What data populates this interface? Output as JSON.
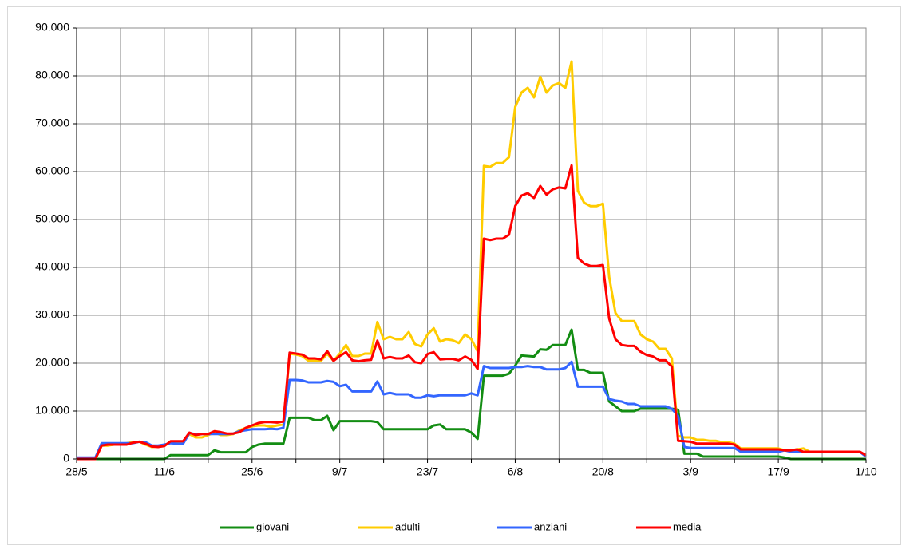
{
  "chart_data": {
    "type": "line",
    "categories": [
      "28/5",
      null,
      null,
      null,
      null,
      null,
      null,
      null,
      null,
      null,
      null,
      null,
      null,
      null,
      "11/6",
      null,
      null,
      null,
      null,
      null,
      null,
      null,
      null,
      null,
      null,
      null,
      null,
      null,
      "25/6",
      null,
      null,
      null,
      null,
      null,
      null,
      null,
      null,
      null,
      null,
      null,
      null,
      null,
      "9/7",
      null,
      null,
      null,
      null,
      null,
      null,
      null,
      null,
      null,
      null,
      null,
      null,
      null,
      "23/7",
      null,
      null,
      null,
      null,
      null,
      null,
      null,
      null,
      null,
      null,
      null,
      null,
      null,
      "6/8",
      null,
      null,
      null,
      null,
      null,
      null,
      null,
      null,
      null,
      null,
      null,
      null,
      null,
      "20/8",
      null,
      null,
      null,
      null,
      null,
      null,
      null,
      null,
      null,
      null,
      null,
      null,
      null,
      "3/9",
      null,
      null,
      null,
      null,
      null,
      null,
      null,
      null,
      null,
      null,
      null,
      null,
      null,
      "17/9",
      null,
      null,
      null,
      null,
      null,
      null,
      null,
      null,
      null,
      null,
      null,
      null,
      null,
      "1/10"
    ],
    "series": [
      {
        "name": "giovani",
        "color": "#138d13",
        "values": [
          0,
          0,
          0,
          0,
          0,
          0,
          0,
          0,
          0,
          0,
          0,
          0,
          0,
          0,
          0,
          800,
          800,
          800,
          800,
          800,
          800,
          800,
          1800,
          1400,
          1400,
          1400,
          1400,
          1400,
          2500,
          3000,
          3200,
          3200,
          3200,
          3200,
          8600,
          8600,
          8600,
          8600,
          8100,
          8100,
          9000,
          6000,
          7900,
          7900,
          7900,
          7900,
          7900,
          7900,
          7700,
          6200,
          6200,
          6200,
          6200,
          6200,
          6200,
          6200,
          6200,
          7000,
          7200,
          6200,
          6200,
          6200,
          6200,
          5500,
          4200,
          17400,
          17400,
          17400,
          17400,
          17800,
          19500,
          21600,
          21500,
          21400,
          22900,
          22800,
          23800,
          23800,
          23800,
          27000,
          18600,
          18600,
          18000,
          18000,
          18000,
          12000,
          11000,
          10000,
          10000,
          10000,
          10500,
          10500,
          10500,
          10500,
          10500,
          10500,
          10300,
          1100,
          1100,
          1100,
          500,
          500,
          500,
          500,
          500,
          500,
          500,
          500,
          500,
          500,
          500,
          500,
          500,
          300,
          0,
          0,
          0,
          0,
          0,
          0,
          0,
          0,
          0,
          0,
          0,
          0,
          0
        ]
      },
      {
        "name": "adulti",
        "color": "#ffcc00",
        "values": [
          0,
          0,
          0,
          0,
          2800,
          2800,
          3000,
          3200,
          3300,
          3500,
          3600,
          3000,
          2500,
          2600,
          2800,
          3500,
          3600,
          3600,
          5200,
          4500,
          4500,
          5000,
          5500,
          5000,
          5000,
          5200,
          6000,
          6500,
          6800,
          7000,
          7000,
          6700,
          7000,
          7200,
          22000,
          21800,
          21500,
          20500,
          20500,
          20500,
          22000,
          20500,
          22000,
          23800,
          21500,
          21500,
          22000,
          22000,
          28600,
          25000,
          25500,
          25000,
          25000,
          26500,
          24000,
          23500,
          26000,
          27300,
          24500,
          25000,
          24800,
          24200,
          26000,
          25000,
          22500,
          61200,
          61000,
          61800,
          61800,
          63000,
          73500,
          76500,
          77500,
          75500,
          79800,
          76500,
          78000,
          78500,
          77500,
          83000,
          56000,
          53500,
          52800,
          52800,
          53300,
          38000,
          30500,
          28800,
          28800,
          28800,
          26000,
          25000,
          24500,
          23000,
          23000,
          21000,
          4800,
          4500,
          4500,
          4000,
          4000,
          3800,
          3800,
          3500,
          3500,
          3200,
          2200,
          2200,
          2200,
          2200,
          2200,
          2200,
          2200,
          1800,
          1800,
          2000,
          2200,
          1500,
          1500,
          1500,
          1500,
          1500,
          1500,
          1500,
          1500,
          1500,
          700
        ]
      },
      {
        "name": "anziani",
        "color": "#3366ff",
        "values": [
          300,
          300,
          300,
          300,
          3300,
          3300,
          3300,
          3300,
          3300,
          3300,
          3600,
          3500,
          2800,
          2800,
          3000,
          3300,
          3200,
          3200,
          5400,
          5200,
          5200,
          5200,
          5200,
          5200,
          5200,
          5300,
          5800,
          6000,
          6200,
          6200,
          6200,
          6300,
          6200,
          6500,
          16500,
          16500,
          16400,
          16000,
          16000,
          16000,
          16300,
          16100,
          15200,
          15500,
          14100,
          14100,
          14100,
          14100,
          16200,
          13500,
          13800,
          13500,
          13500,
          13500,
          12800,
          12800,
          13300,
          13100,
          13300,
          13300,
          13300,
          13300,
          13300,
          13700,
          13300,
          19400,
          19000,
          19000,
          19000,
          19000,
          19200,
          19200,
          19400,
          19200,
          19200,
          18700,
          18700,
          18700,
          19000,
          20300,
          15100,
          15100,
          15100,
          15100,
          15100,
          12500,
          12200,
          12000,
          11500,
          11500,
          11000,
          11000,
          11000,
          11000,
          11000,
          10500,
          9000,
          2500,
          2300,
          2300,
          2300,
          2300,
          2300,
          2300,
          2300,
          2300,
          1500,
          1500,
          1500,
          1500,
          1500,
          1500,
          1500,
          1800,
          1500,
          1500,
          1500,
          1500,
          1500,
          1500,
          1500,
          1500,
          1500,
          1500,
          1500,
          1500,
          500
        ]
      },
      {
        "name": "media",
        "color": "#ff0000",
        "values": [
          0,
          0,
          0,
          0,
          2800,
          3000,
          3000,
          3000,
          3000,
          3400,
          3600,
          3200,
          2600,
          2500,
          2700,
          3700,
          3700,
          3700,
          5500,
          5000,
          5200,
          5200,
          5800,
          5600,
          5300,
          5300,
          5600,
          6500,
          7000,
          7500,
          7700,
          7700,
          7600,
          7800,
          22200,
          22000,
          21800,
          21000,
          21000,
          20800,
          22500,
          20500,
          21500,
          22300,
          20600,
          20400,
          20600,
          20700,
          24700,
          21000,
          21300,
          21000,
          21000,
          21600,
          20200,
          20000,
          21900,
          22300,
          20800,
          20900,
          20900,
          20600,
          21400,
          20700,
          18800,
          46000,
          45700,
          46000,
          46000,
          46800,
          52800,
          55000,
          55500,
          54500,
          57000,
          55200,
          56300,
          56700,
          56500,
          61300,
          42000,
          40800,
          40300,
          40300,
          40500,
          29300,
          25000,
          23800,
          23600,
          23600,
          22400,
          21700,
          21400,
          20600,
          20600,
          19300,
          3800,
          3700,
          3600,
          3200,
          3200,
          3200,
          3200,
          3200,
          3200,
          3000,
          2000,
          2000,
          2000,
          2000,
          2000,
          2000,
          2000,
          1800,
          1800,
          2000,
          1500,
          1500,
          1500,
          1500,
          1500,
          1500,
          1500,
          1500,
          1500,
          1500,
          800
        ]
      }
    ],
    "ylim": [
      0,
      90000
    ],
    "yticks": [
      0,
      {
        "value": 10000,
        "label": "10.000"
      },
      {
        "value": 20000,
        "label": "20.000"
      },
      {
        "value": 30000,
        "label": "30.000"
      },
      {
        "value": 40000,
        "label": "40.000"
      },
      {
        "value": 50000,
        "label": "50.000"
      },
      {
        "value": 60000,
        "label": "60.000"
      },
      {
        "value": 70000,
        "label": "70.000"
      },
      {
        "value": 80000,
        "label": "80.000"
      },
      {
        "value": 90000,
        "label": "90.000"
      }
    ],
    "grid": true,
    "legend": "bottom"
  }
}
